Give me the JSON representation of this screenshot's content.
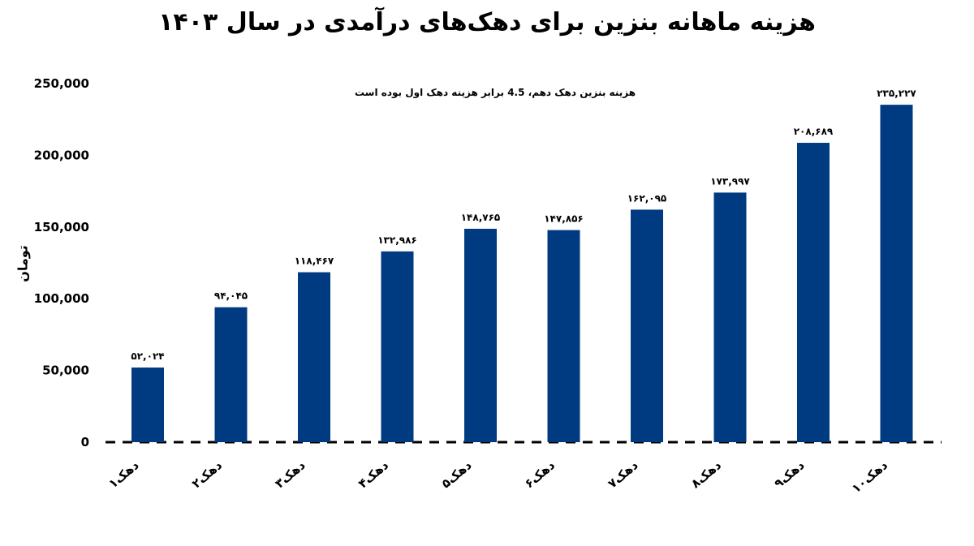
{
  "chart_data": {
    "type": "bar",
    "title": "هزینه ماهانه بنزین برای دهک‌های درآمدی در سال ۱۴۰۳",
    "annotation": "هزینه بنزین دهک دهم، 4.5 برابر هزینه دهک اول بوده است",
    "ylabel": "تومان",
    "xlabel": "",
    "ylim": [
      0,
      250000
    ],
    "yticks": [
      0,
      50000,
      100000,
      150000,
      200000,
      250000
    ],
    "ytick_labels": [
      "0",
      "50,000",
      "100,000",
      "150,000",
      "200,000",
      "250,000"
    ],
    "categories": [
      "دهک۱",
      "دهک۲",
      "دهک۳",
      "دهک۴",
      "دهک۵",
      "دهک۶",
      "دهک۷",
      "دهک۸",
      "دهک۹",
      "دهک۱۰"
    ],
    "values": [
      52024,
      94045,
      118467,
      132986,
      148765,
      147856,
      162095,
      173997,
      208689,
      235227
    ],
    "value_labels": [
      "۵۲,۰۲۴",
      "۹۴,۰۴۵",
      "۱۱۸,۴۶۷",
      "۱۳۲,۹۸۶",
      "۱۴۸,۷۶۵",
      "۱۴۷,۸۵۶",
      "۱۶۲,۰۹۵",
      "۱۷۳,۹۹۷",
      "۲۰۸,۶۸۹",
      "۲۳۵,۲۲۷"
    ],
    "grid": false,
    "bar_color": "#003a80"
  }
}
